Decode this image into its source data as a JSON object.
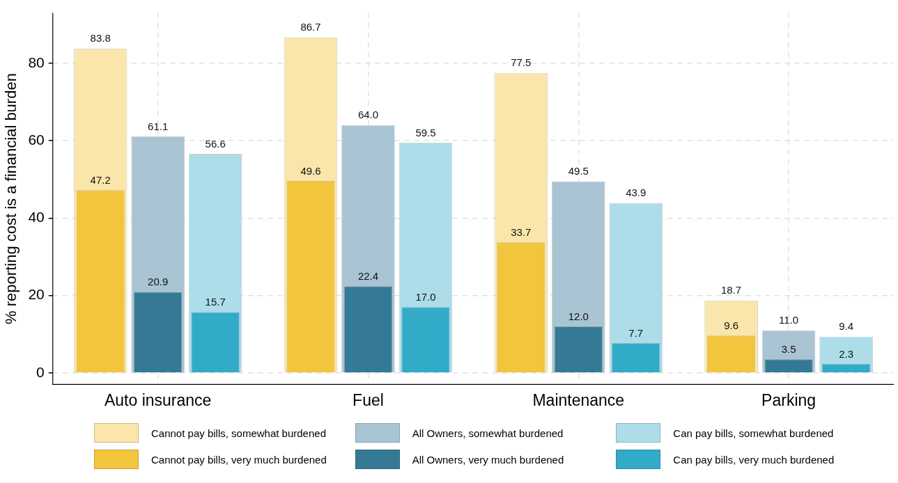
{
  "chart_data": {
    "type": "bar",
    "ylabel": "% reporting cost is a financial burden",
    "categories": [
      "Auto insurance",
      "Fuel",
      "Maintenance",
      "Parking"
    ],
    "ylim": [
      -3,
      93
    ],
    "yticks": [
      0,
      20,
      40,
      60,
      80
    ],
    "grid": true,
    "legend": "bottom",
    "series": [
      {
        "name": "Cannot pay bills, somewhat burdened",
        "color": "#fae6aa",
        "values": [
          83.8,
          86.7,
          77.5,
          18.7
        ],
        "value_labels": [
          "83.8",
          "86.7",
          "77.5",
          "18.7"
        ]
      },
      {
        "name": "All Owners, somewhat burdened",
        "color": "#a9c4d3",
        "values": [
          61.1,
          64.0,
          49.5,
          11.0
        ],
        "value_labels": [
          "61.1",
          "64.0",
          "49.5",
          "11.0"
        ]
      },
      {
        "name": "Can pay bills, somewhat burdened",
        "color": "#acdde9",
        "values": [
          56.6,
          59.5,
          43.9,
          9.4
        ],
        "value_labels": [
          "56.6",
          "59.5",
          "43.9",
          "9.4"
        ]
      },
      {
        "name": "Cannot pay bills, very much burdened",
        "color": "#f2c53d",
        "values": [
          47.2,
          49.6,
          33.7,
          9.6
        ],
        "value_labels": [
          "47.2",
          "49.6",
          "33.7",
          "9.6"
        ]
      },
      {
        "name": "All Owners, very much burdened",
        "color": "#357a95",
        "values": [
          20.9,
          22.4,
          12.0,
          3.5
        ],
        "value_labels": [
          "20.9",
          "22.4",
          "12.0",
          "3.5"
        ]
      },
      {
        "name": "Can pay bills, very much burdened",
        "color": "#32abc9",
        "values": [
          15.7,
          17.0,
          7.7,
          2.3
        ],
        "value_labels": [
          "15.7",
          "17.0",
          "7.7",
          "2.3"
        ]
      }
    ]
  }
}
